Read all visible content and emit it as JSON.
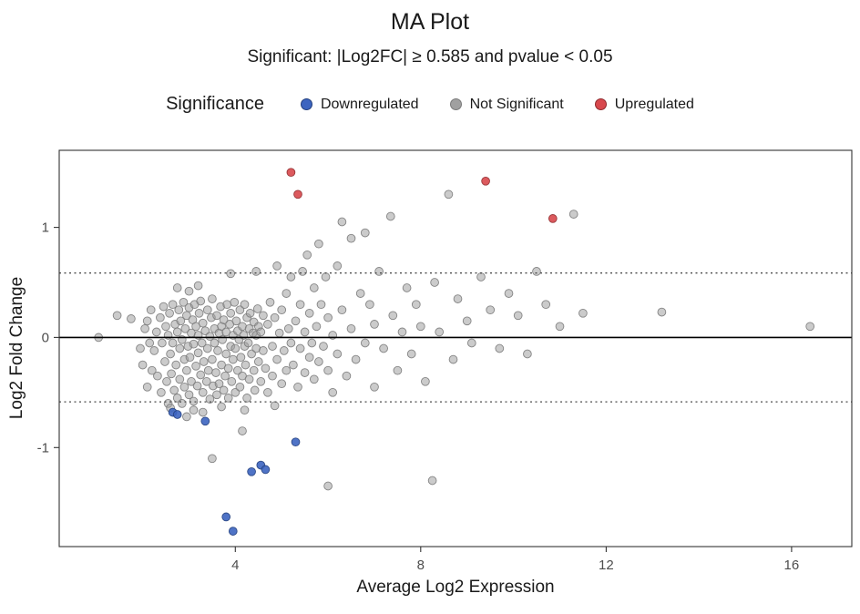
{
  "chart_data": {
    "type": "scatter",
    "title": "MA Plot",
    "subtitle": "Significant: |Log2FC| ≥ 0.585 and pvalue < 0.05",
    "xlabel": "Average Log2 Expression",
    "ylabel": "Log2 Fold Change",
    "xlim": [
      0.2,
      17.3
    ],
    "ylim": [
      -1.9,
      1.7
    ],
    "x_ticks": [
      4,
      8,
      12,
      16
    ],
    "y_ticks": [
      -1,
      0,
      1
    ],
    "grid": false,
    "legend_position": "top",
    "legend": {
      "title": "Significance",
      "items": [
        {
          "label": "Downregulated",
          "color": "#3c64c0",
          "stroke": "#24407e"
        },
        {
          "label": "Not Significant",
          "color": "#a0a0a0",
          "stroke": "#7a7a7a"
        },
        {
          "label": "Upregulated",
          "color": "#d8484d",
          "stroke": "#8f2b2e"
        }
      ]
    },
    "reference_lines": {
      "solid": [
        0
      ],
      "dotted": [
        0.585,
        -0.585
      ]
    },
    "series": [
      {
        "name": "Not Significant",
        "color": "#a0a0a0",
        "stroke": "#7a7a7a",
        "fill_opacity": 0.55,
        "points": [
          [
            1.05,
            0
          ],
          [
            1.45,
            0.2
          ],
          [
            1.75,
            0.17
          ],
          [
            1.95,
            -0.1
          ],
          [
            2,
            -0.25
          ],
          [
            2.05,
            0.08
          ],
          [
            2.1,
            -0.45
          ],
          [
            2.1,
            0.15
          ],
          [
            2.15,
            -0.05
          ],
          [
            2.18,
            0.25
          ],
          [
            2.2,
            -0.3
          ],
          [
            2.25,
            -0.12
          ],
          [
            2.3,
            0.05
          ],
          [
            2.32,
            -0.35
          ],
          [
            2.38,
            0.18
          ],
          [
            2.4,
            -0.5
          ],
          [
            2.42,
            -0.05
          ],
          [
            2.45,
            0.28
          ],
          [
            2.48,
            -0.22
          ],
          [
            2.5,
            0.1
          ],
          [
            2.52,
            -0.4
          ],
          [
            2.55,
            0.02
          ],
          [
            2.55,
            -0.6
          ],
          [
            2.58,
            0.22
          ],
          [
            2.6,
            -0.15
          ],
          [
            2.6,
            -0.64
          ],
          [
            2.62,
            -0.33
          ],
          [
            2.65,
            0.3
          ],
          [
            2.65,
            -0.05
          ],
          [
            2.68,
            -0.48
          ],
          [
            2.7,
            0.12
          ],
          [
            2.72,
            -0.25
          ],
          [
            2.75,
            0.05
          ],
          [
            2.75,
            -0.55
          ],
          [
            2.75,
            0.45
          ],
          [
            2.78,
            0.25
          ],
          [
            2.8,
            -0.1
          ],
          [
            2.8,
            -0.38
          ],
          [
            2.82,
            0.15
          ],
          [
            2.85,
            -0.02
          ],
          [
            2.85,
            -0.6
          ],
          [
            2.88,
            0.32
          ],
          [
            2.9,
            -0.2
          ],
          [
            2.9,
            -0.45
          ],
          [
            2.92,
            0.08
          ],
          [
            2.95,
            -0.3
          ],
          [
            2.95,
            0.2
          ],
          [
            2.95,
            -0.72
          ],
          [
            2.98,
            -0.08
          ],
          [
            3,
            -0.52
          ],
          [
            3,
            0.27
          ],
          [
            3,
            0.42
          ],
          [
            3.02,
            -0.18
          ],
          [
            3.05,
            0.04
          ],
          [
            3.05,
            -0.4
          ],
          [
            3.08,
            0.16
          ],
          [
            3.1,
            -0.06
          ],
          [
            3.1,
            -0.58
          ],
          [
            3.1,
            -0.66
          ],
          [
            3.12,
            0.3
          ],
          [
            3.15,
            -0.26
          ],
          [
            3.15,
            0.1
          ],
          [
            3.18,
            -0.44
          ],
          [
            3.2,
            0.02
          ],
          [
            3.2,
            -0.14
          ],
          [
            3.2,
            0.47
          ],
          [
            3.22,
            0.22
          ],
          [
            3.25,
            -0.34
          ],
          [
            3.25,
            0.33
          ],
          [
            3.28,
            -0.05
          ],
          [
            3.3,
            -0.5
          ],
          [
            3.3,
            0.13
          ],
          [
            3.3,
            -0.68
          ],
          [
            3.32,
            -0.22
          ],
          [
            3.35,
            0.06
          ],
          [
            3.38,
            -0.4
          ],
          [
            3.4,
            0.25
          ],
          [
            3.4,
            -0.1
          ],
          [
            3.42,
            -0.3
          ],
          [
            3.45,
            0.01
          ],
          [
            3.45,
            -0.56
          ],
          [
            3.48,
            0.18
          ],
          [
            3.5,
            -0.2
          ],
          [
            3.5,
            0.35
          ],
          [
            3.5,
            -1.1
          ],
          [
            3.52,
            -0.44
          ],
          [
            3.55,
            0.08
          ],
          [
            3.55,
            -0.05
          ],
          [
            3.58,
            -0.32
          ],
          [
            3.6,
            0.2
          ],
          [
            3.6,
            -0.52
          ],
          [
            3.62,
            -0.12
          ],
          [
            3.65,
            0.04
          ],
          [
            3.65,
            -0.42
          ],
          [
            3.68,
            0.28
          ],
          [
            3.7,
            -0.25
          ],
          [
            3.7,
            0.1
          ],
          [
            3.7,
            -0.63
          ],
          [
            3.72,
            -0.02
          ],
          [
            3.75,
            -0.48
          ],
          [
            3.75,
            0.16
          ],
          [
            3.78,
            -0.35
          ],
          [
            3.8,
            0.05
          ],
          [
            3.8,
            -0.15
          ],
          [
            3.82,
            0.3
          ],
          [
            3.85,
            -0.28
          ],
          [
            3.85,
            -0.55
          ],
          [
            3.88,
            0.12
          ],
          [
            3.9,
            -0.08
          ],
          [
            3.9,
            0.22
          ],
          [
            3.9,
            0.58
          ],
          [
            3.92,
            -0.4
          ],
          [
            3.95,
            0.02
          ],
          [
            3.95,
            -0.2
          ],
          [
            3.98,
            0.32
          ],
          [
            4,
            -0.5
          ],
          [
            4,
            -0.1
          ],
          [
            4.02,
            0.15
          ],
          [
            4.05,
            -0.3
          ],
          [
            4.05,
            0.06
          ],
          [
            4.08,
            -0.02
          ],
          [
            4.1,
            0.25
          ],
          [
            4.1,
            -0.45
          ],
          [
            4.12,
            -0.18
          ],
          [
            4.15,
            0.1
          ],
          [
            4.15,
            -0.35
          ],
          [
            4.15,
            -0.85
          ],
          [
            4.18,
            0.02
          ],
          [
            4.2,
            -0.08
          ],
          [
            4.2,
            0.3
          ],
          [
            4.2,
            -0.66
          ],
          [
            4.22,
            -0.25
          ],
          [
            4.25,
            -0.55
          ],
          [
            4.25,
            0.18
          ],
          [
            4.28,
            -0.05
          ],
          [
            4.3,
            0.08
          ],
          [
            4.3,
            -0.38
          ],
          [
            4.32,
            0.22
          ],
          [
            4.35,
            -0.15
          ],
          [
            4.38,
            0.04
          ],
          [
            4.4,
            -0.3
          ],
          [
            4.4,
            0.14
          ],
          [
            4.42,
            -0.48
          ],
          [
            4.45,
            0.02
          ],
          [
            4.45,
            0.6
          ],
          [
            4.45,
            -0.1
          ],
          [
            4.48,
            0.26
          ],
          [
            4.5,
            -0.22
          ],
          [
            4.5,
            0.1
          ],
          [
            4.55,
            -0.4
          ],
          [
            4.55,
            0.05
          ],
          [
            4.6,
            -0.12
          ],
          [
            4.6,
            0.2
          ],
          [
            4.65,
            -0.28
          ],
          [
            4.7,
            0.12
          ],
          [
            4.7,
            -0.5
          ],
          [
            4.75,
            0.32
          ],
          [
            4.8,
            -0.08
          ],
          [
            4.8,
            -0.35
          ],
          [
            4.85,
            0.18
          ],
          [
            4.85,
            -0.62
          ],
          [
            4.9,
            -0.2
          ],
          [
            4.9,
            0.65
          ],
          [
            4.95,
            0.04
          ],
          [
            5,
            -0.42
          ],
          [
            5,
            0.25
          ],
          [
            5.05,
            -0.12
          ],
          [
            5.1,
            0.4
          ],
          [
            5.1,
            -0.3
          ],
          [
            5.15,
            0.08
          ],
          [
            5.2,
            -0.05
          ],
          [
            5.2,
            0.55
          ],
          [
            5.25,
            -0.25
          ],
          [
            5.3,
            0.15
          ],
          [
            5.35,
            -0.45
          ],
          [
            5.4,
            0.3
          ],
          [
            5.4,
            -0.1
          ],
          [
            5.45,
            0.6
          ],
          [
            5.5,
            -0.32
          ],
          [
            5.5,
            0.05
          ],
          [
            5.55,
            0.75
          ],
          [
            5.6,
            -0.18
          ],
          [
            5.6,
            0.22
          ],
          [
            5.65,
            -0.05
          ],
          [
            5.7,
            0.45
          ],
          [
            5.7,
            -0.38
          ],
          [
            5.75,
            0.1
          ],
          [
            5.8,
            0.85
          ],
          [
            5.8,
            -0.22
          ],
          [
            5.85,
            0.3
          ],
          [
            5.9,
            -0.08
          ],
          [
            5.95,
            0.55
          ],
          [
            6,
            -0.3
          ],
          [
            6,
            0.18
          ],
          [
            6,
            -1.35
          ],
          [
            6.1,
            0.02
          ],
          [
            6.1,
            -0.5
          ],
          [
            6.2,
            0.65
          ],
          [
            6.2,
            -0.15
          ],
          [
            6.3,
            1.05
          ],
          [
            6.3,
            0.25
          ],
          [
            6.4,
            -0.35
          ],
          [
            6.5,
            0.08
          ],
          [
            6.5,
            0.9
          ],
          [
            6.6,
            -0.2
          ],
          [
            6.7,
            0.4
          ],
          [
            6.8,
            0.95
          ],
          [
            6.8,
            -0.05
          ],
          [
            6.9,
            0.3
          ],
          [
            7,
            -0.45
          ],
          [
            7,
            0.12
          ],
          [
            7.1,
            0.6
          ],
          [
            7.2,
            -0.1
          ],
          [
            7.35,
            1.1
          ],
          [
            7.4,
            0.2
          ],
          [
            7.5,
            -0.3
          ],
          [
            7.6,
            0.05
          ],
          [
            7.7,
            0.45
          ],
          [
            7.8,
            -0.15
          ],
          [
            7.9,
            0.3
          ],
          [
            8,
            0.1
          ],
          [
            8.1,
            -0.4
          ],
          [
            8.25,
            -1.3
          ],
          [
            8.3,
            0.5
          ],
          [
            8.4,
            0.05
          ],
          [
            8.6,
            1.3
          ],
          [
            8.7,
            -0.2
          ],
          [
            8.8,
            0.35
          ],
          [
            9,
            0.15
          ],
          [
            9.1,
            -0.05
          ],
          [
            9.3,
            0.55
          ],
          [
            9.5,
            0.25
          ],
          [
            9.7,
            -0.1
          ],
          [
            9.9,
            0.4
          ],
          [
            10.1,
            0.2
          ],
          [
            10.3,
            -0.15
          ],
          [
            10.5,
            0.6
          ],
          [
            10.7,
            0.3
          ],
          [
            11,
            0.1
          ],
          [
            11.3,
            1.12
          ],
          [
            11.5,
            0.22
          ],
          [
            13.2,
            0.23
          ],
          [
            16.4,
            0.1
          ]
        ]
      },
      {
        "name": "Downregulated",
        "color": "#3c64c0",
        "stroke": "#24407e",
        "fill_opacity": 0.9,
        "points": [
          [
            2.65,
            -0.68
          ],
          [
            2.75,
            -0.7
          ],
          [
            3.35,
            -0.76
          ],
          [
            4.35,
            -1.22
          ],
          [
            4.55,
            -1.16
          ],
          [
            4.65,
            -1.2
          ],
          [
            5.3,
            -0.95
          ],
          [
            3.8,
            -1.63
          ],
          [
            3.95,
            -1.76
          ]
        ]
      },
      {
        "name": "Upregulated",
        "color": "#d8484d",
        "stroke": "#8f2b2e",
        "fill_opacity": 0.9,
        "points": [
          [
            5.2,
            1.5
          ],
          [
            5.35,
            1.3
          ],
          [
            9.4,
            1.42
          ],
          [
            10.85,
            1.08
          ]
        ]
      }
    ]
  }
}
